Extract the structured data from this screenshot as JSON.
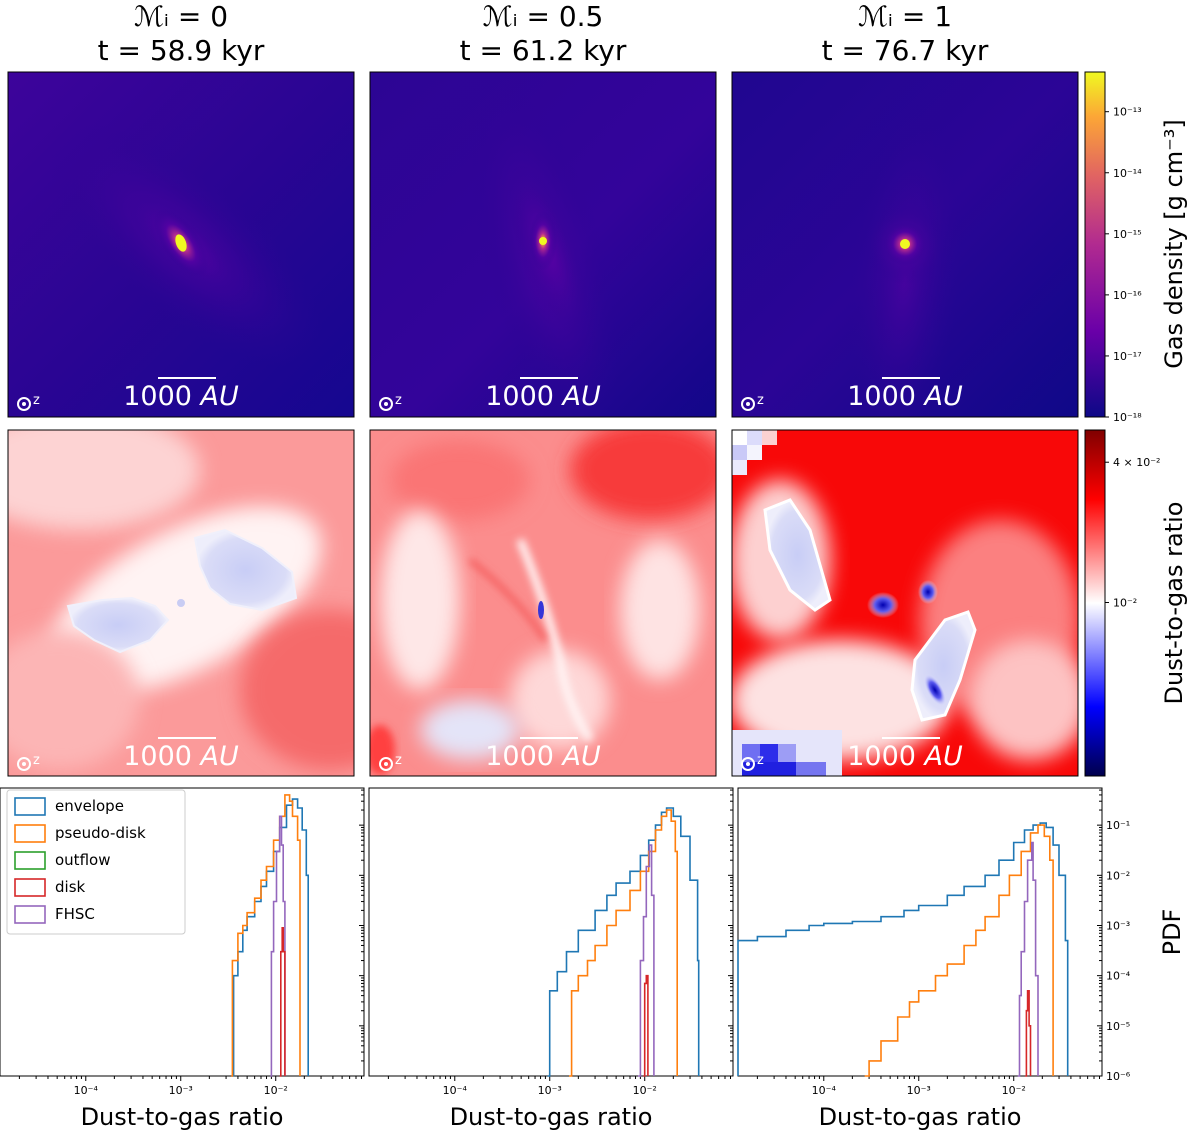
{
  "titles": [
    {
      "mach": "ℳᵢ = 0",
      "time": "t = 58.9 kyr"
    },
    {
      "mach": "ℳᵢ = 0.5",
      "time": "t = 61.2 kyr"
    },
    {
      "mach": "ℳᵢ = 1",
      "time": "t = 76.7 kyr"
    }
  ],
  "scale_bar": {
    "value": "1000",
    "unit": "AU"
  },
  "axis_indicator": "z",
  "colorbars": {
    "density": {
      "label": "Gas density [g cm⁻³]",
      "ticks": [
        {
          "value": -13,
          "label": "10⁻¹³"
        },
        {
          "value": -14,
          "label": "10⁻¹⁴"
        },
        {
          "value": -15,
          "label": "10⁻¹⁵"
        },
        {
          "value": -16,
          "label": "10⁻¹⁶"
        },
        {
          "value": -17,
          "label": "10⁻¹⁷"
        },
        {
          "value": -18,
          "label": "10⁻¹⁸"
        }
      ],
      "range_log": [
        -18,
        -12.35
      ],
      "colors": [
        "#0d0887",
        "#6a00a8",
        "#b12a90",
        "#e16462",
        "#fca636",
        "#f0f921"
      ]
    },
    "dust": {
      "label": "Dust-to-gas ratio",
      "ticks": [
        {
          "value": 0.04,
          "label": "4 × 10⁻²"
        },
        {
          "value": 0.01,
          "label": "10⁻²"
        }
      ],
      "range": [
        0.0018,
        0.055
      ],
      "colors": [
        "#00004c",
        "#0000ff",
        "#ffffff",
        "#ff0000",
        "#800000"
      ]
    }
  },
  "chart_data": {
    "type": "line",
    "drawstyle": "steps",
    "xscale": "log",
    "yscale": "log",
    "xlabel": "Dust-to-gas ratio",
    "ylabel": "PDF",
    "xlim": [
      1.25e-05,
      0.085
    ],
    "ylim": [
      1e-06,
      0.55
    ],
    "xticks": [
      {
        "value": 0.0001,
        "label": "10⁻⁴"
      },
      {
        "value": 0.001,
        "label": "10⁻³"
      },
      {
        "value": 0.01,
        "label": "10⁻²"
      }
    ],
    "yticks": [
      {
        "value": 0.1,
        "label": "10⁻¹"
      },
      {
        "value": 0.01,
        "label": "10⁻²"
      },
      {
        "value": 0.001,
        "label": "10⁻³"
      },
      {
        "value": 0.0001,
        "label": "10⁻⁴"
      },
      {
        "value": 1e-05,
        "label": "10⁻⁵"
      },
      {
        "value": 1e-06,
        "label": "10⁻⁶"
      }
    ],
    "legend": [
      "envelope",
      "pseudo-disk",
      "outflow",
      "disk",
      "FHSC"
    ],
    "colors": [
      "#1f77b4",
      "#ff7f0e",
      "#2ca02c",
      "#d62728",
      "#9467bd"
    ],
    "panels": [
      {
        "mach": "0",
        "series": [
          {
            "name": "envelope",
            "points": [
              [
                0.0034,
                1e-06
              ],
              [
                0.0036,
                0.0001
              ],
              [
                0.004,
                0.0003
              ],
              [
                0.0045,
                0.0008
              ],
              [
                0.005,
                0.0015
              ],
              [
                0.006,
                0.003
              ],
              [
                0.007,
                0.006
              ],
              [
                0.008,
                0.012
              ],
              [
                0.0095,
                0.03
              ],
              [
                0.011,
                0.09
              ],
              [
                0.013,
                0.25
              ],
              [
                0.015,
                0.33
              ],
              [
                0.017,
                0.22
              ],
              [
                0.019,
                0.08
              ],
              [
                0.021,
                0.01
              ],
              [
                0.022,
                1e-06
              ]
            ]
          },
          {
            "name": "pseudo-disk",
            "points": [
              [
                0.0034,
                1e-06
              ],
              [
                0.0035,
                0.0002
              ],
              [
                0.004,
                0.0007
              ],
              [
                0.0045,
                0.001
              ],
              [
                0.005,
                0.0018
              ],
              [
                0.006,
                0.0035
              ],
              [
                0.007,
                0.008
              ],
              [
                0.008,
                0.015
              ],
              [
                0.0095,
                0.05
              ],
              [
                0.011,
                0.15
              ],
              [
                0.0125,
                0.4
              ],
              [
                0.014,
                0.3
              ],
              [
                0.015,
                0.15
              ],
              [
                0.017,
                0.05
              ],
              [
                0.018,
                1e-06
              ]
            ]
          },
          {
            "name": "FHSC",
            "points": [
              [
                0.0088,
                1e-06
              ],
              [
                0.009,
                0.0003
              ],
              [
                0.0095,
                0.003
              ],
              [
                0.0102,
                0.03
              ],
              [
                0.011,
                0.15
              ],
              [
                0.0115,
                0.04
              ],
              [
                0.012,
                0.003
              ],
              [
                0.0125,
                1e-06
              ]
            ]
          },
          {
            "name": "disk",
            "points": [
              [
                0.011,
                1e-06
              ],
              [
                0.0113,
                0.0003
              ],
              [
                0.0117,
                0.0009
              ],
              [
                0.012,
                0.0003
              ],
              [
                0.0125,
                1e-06
              ]
            ]
          }
        ]
      },
      {
        "mach": "0.5",
        "series": [
          {
            "name": "envelope",
            "points": [
              [
                0.00095,
                1e-06
              ],
              [
                0.001,
                5e-05
              ],
              [
                0.0012,
                0.00012
              ],
              [
                0.0015,
                0.0003
              ],
              [
                0.002,
                0.0008
              ],
              [
                0.003,
                0.002
              ],
              [
                0.004,
                0.004
              ],
              [
                0.005,
                0.007
              ],
              [
                0.007,
                0.012
              ],
              [
                0.009,
                0.025
              ],
              [
                0.011,
                0.05
              ],
              [
                0.013,
                0.1
              ],
              [
                0.015,
                0.18
              ],
              [
                0.017,
                0.22
              ],
              [
                0.02,
                0.15
              ],
              [
                0.024,
                0.06
              ],
              [
                0.03,
                0.008
              ],
              [
                0.036,
                0.0002
              ],
              [
                0.037,
                1e-06
              ]
            ]
          },
          {
            "name": "pseudo-disk",
            "points": [
              [
                0.0016,
                1e-06
              ],
              [
                0.0017,
                5e-05
              ],
              [
                0.002,
                0.0001
              ],
              [
                0.0025,
                0.0002
              ],
              [
                0.003,
                0.0004
              ],
              [
                0.004,
                0.001
              ],
              [
                0.005,
                0.002
              ],
              [
                0.007,
                0.005
              ],
              [
                0.009,
                0.012
              ],
              [
                0.011,
                0.03
              ],
              [
                0.013,
                0.08
              ],
              [
                0.015,
                0.15
              ],
              [
                0.017,
                0.2
              ],
              [
                0.019,
                0.12
              ],
              [
                0.021,
                0.03
              ],
              [
                0.022,
                1e-06
              ]
            ]
          },
          {
            "name": "FHSC",
            "points": [
              [
                0.0085,
                1e-06
              ],
              [
                0.009,
                0.0002
              ],
              [
                0.0097,
                0.0015
              ],
              [
                0.0104,
                0.015
              ],
              [
                0.0112,
                0.04
              ],
              [
                0.0118,
                0.004
              ],
              [
                0.0125,
                1e-06
              ]
            ]
          },
          {
            "name": "disk",
            "points": [
              [
                0.0097,
                1e-06
              ],
              [
                0.01,
                7e-05
              ],
              [
                0.0104,
                0.0001
              ],
              [
                0.0108,
                1e-06
              ]
            ]
          }
        ]
      },
      {
        "mach": "1",
        "series": [
          {
            "name": "envelope",
            "points": [
              [
                1.25e-05,
                0.0005
              ],
              [
                2e-05,
                0.0006
              ],
              [
                4e-05,
                0.0008
              ],
              [
                7e-05,
                0.001
              ],
              [
                0.0001,
                0.0011
              ],
              [
                0.0002,
                0.0012
              ],
              [
                0.0004,
                0.0015
              ],
              [
                0.0007,
                0.002
              ],
              [
                0.001,
                0.0025
              ],
              [
                0.002,
                0.004
              ],
              [
                0.003,
                0.006
              ],
              [
                0.005,
                0.01
              ],
              [
                0.007,
                0.02
              ],
              [
                0.01,
                0.045
              ],
              [
                0.013,
                0.08
              ],
              [
                0.016,
                0.1
              ],
              [
                0.019,
                0.11
              ],
              [
                0.022,
                0.09
              ],
              [
                0.026,
                0.04
              ],
              [
                0.03,
                0.01
              ],
              [
                0.035,
                0.0005
              ],
              [
                0.037,
                1e-06
              ]
            ]
          },
          {
            "name": "pseudo-disk",
            "points": [
              [
                0.00027,
                1e-06
              ],
              [
                0.0003,
                2e-06
              ],
              [
                0.0004,
                5e-06
              ],
              [
                0.0006,
                1.5e-05
              ],
              [
                0.0008,
                3e-05
              ],
              [
                0.001,
                5e-05
              ],
              [
                0.0015,
                0.0001
              ],
              [
                0.002,
                0.00017
              ],
              [
                0.003,
                0.0004
              ],
              [
                0.004,
                0.0008
              ],
              [
                0.005,
                0.0015
              ],
              [
                0.007,
                0.004
              ],
              [
                0.009,
                0.01
              ],
              [
                0.012,
                0.03
              ],
              [
                0.015,
                0.07
              ],
              [
                0.018,
                0.1
              ],
              [
                0.021,
                0.06
              ],
              [
                0.024,
                0.02
              ],
              [
                0.026,
                1e-06
              ]
            ]
          },
          {
            "name": "FHSC",
            "points": [
              [
                0.011,
                1e-06
              ],
              [
                0.0115,
                4e-05
              ],
              [
                0.012,
                0.0003
              ],
              [
                0.013,
                0.003
              ],
              [
                0.014,
                0.02
              ],
              [
                0.0155,
                0.045
              ],
              [
                0.016,
                0.008
              ],
              [
                0.017,
                0.0001
              ],
              [
                0.018,
                1e-06
              ]
            ]
          },
          {
            "name": "disk",
            "points": [
              [
                0.0132,
                1e-06
              ],
              [
                0.0136,
                2e-05
              ],
              [
                0.014,
                5e-05
              ],
              [
                0.0145,
                1e-05
              ],
              [
                0.015,
                1e-06
              ]
            ]
          }
        ]
      }
    ]
  }
}
